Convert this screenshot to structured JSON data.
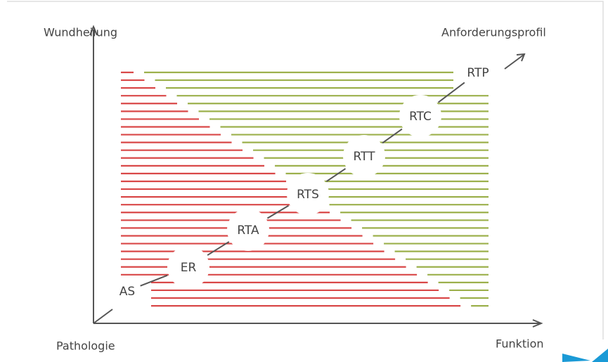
{
  "axes": {
    "y_label": "Wundheilung",
    "top_right_label": "Anforderungsprofil",
    "origin_label": "Pathologie",
    "x_label": "Funktion"
  },
  "stages": [
    "AS",
    "ER",
    "RTA",
    "RTS",
    "RTT",
    "RTC",
    "RTP"
  ]
}
